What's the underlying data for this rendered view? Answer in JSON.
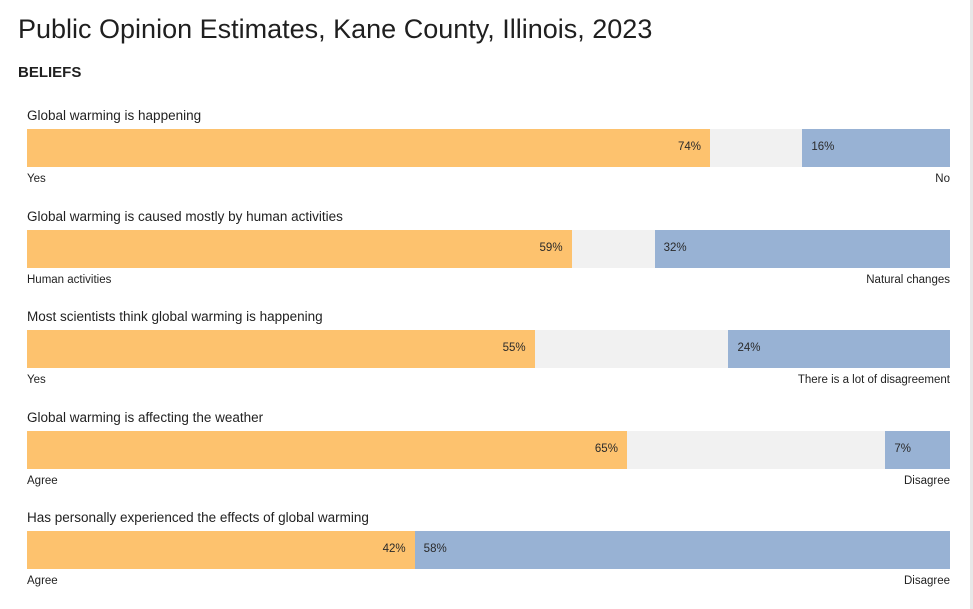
{
  "title": "Public Opinion Estimates, Kane County, Illinois, 2023",
  "section": "BELIEFS",
  "colors": {
    "agree": "#fdc26e",
    "disagree": "#98b2d4",
    "neutral": "#f1f1f1"
  },
  "chart_data": {
    "type": "bar",
    "orientation": "horizontal",
    "stacked": true,
    "unit": "%",
    "rows": [
      {
        "question": "Global warming is happening",
        "left_label": "Yes",
        "right_label": "No",
        "left_value": 74,
        "right_value": 16,
        "left_text": "74%",
        "right_text": "16%"
      },
      {
        "question": "Global warming is caused mostly by human activities",
        "left_label": "Human activities",
        "right_label": "Natural changes",
        "left_value": 59,
        "right_value": 32,
        "left_text": "59%",
        "right_text": "32%"
      },
      {
        "question": "Most scientists think global warming is happening",
        "left_label": "Yes",
        "right_label": "There is a lot of disagreement",
        "left_value": 55,
        "right_value": 24,
        "left_text": "55%",
        "right_text": "24%"
      },
      {
        "question": "Global warming is affecting the weather",
        "left_label": "Agree",
        "right_label": "Disagree",
        "left_value": 65,
        "right_value": 7,
        "left_text": "65%",
        "right_text": "7%"
      },
      {
        "question": "Has personally experienced the effects of global warming",
        "left_label": "Agree",
        "right_label": "Disagree",
        "left_value": 42,
        "right_value": 58,
        "left_text": "42%",
        "right_text": "58%"
      }
    ]
  }
}
